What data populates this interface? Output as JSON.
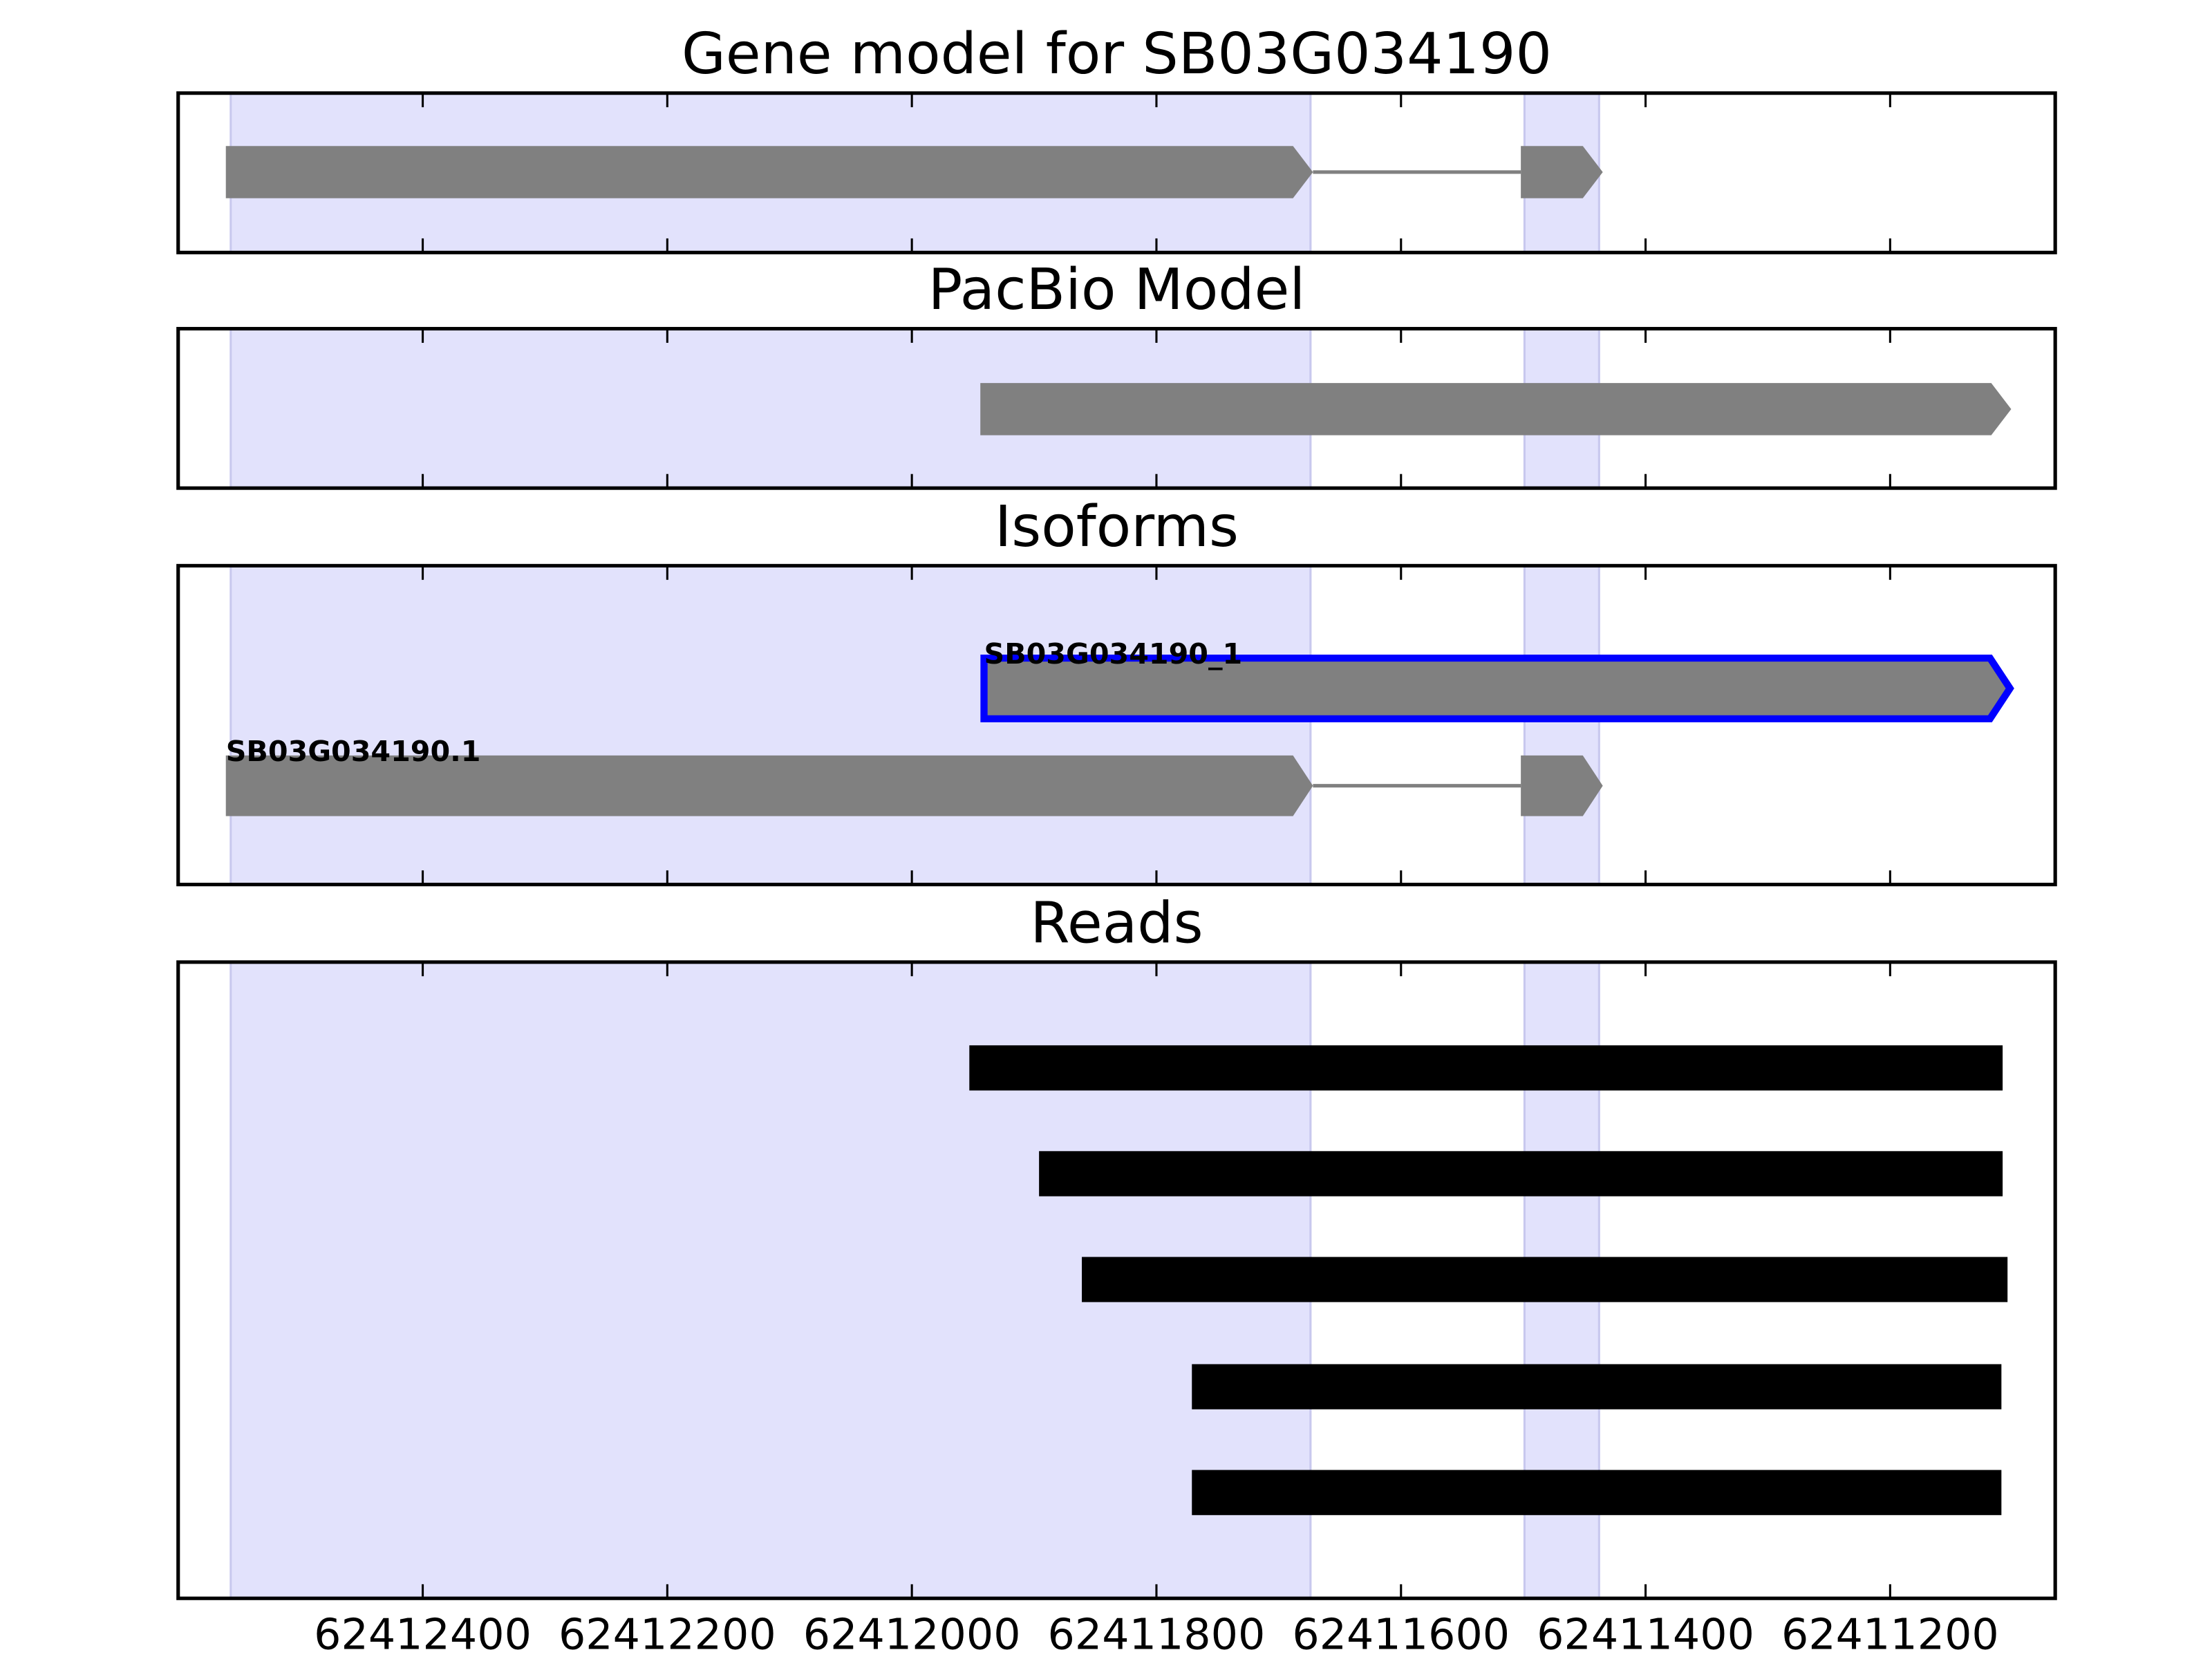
{
  "chart_data": [
    {
      "type": "gene",
      "title": "Gene model for SB03G034190",
      "xlim": [
        62412600,
        62411065
      ],
      "xticks": [
        62412400,
        62412200,
        62412000,
        62411800,
        62411600,
        62411400,
        62411200
      ],
      "highlights": [
        [
          62412557,
          62411674
        ],
        [
          62411499,
          62411438
        ]
      ],
      "highlight_color": "#e2e2fc",
      "features": [
        {
          "color": "#808080",
          "exons": [
            [
              62412561,
              62411672
            ],
            [
              62411502,
              62411435
            ]
          ]
        }
      ]
    },
    {
      "type": "gene",
      "title": "PacBio Model",
      "xlim": [
        62412600,
        62411065
      ],
      "xticks": [
        62412400,
        62412200,
        62412000,
        62411800,
        62411600,
        62411400,
        62411200
      ],
      "highlights": [
        [
          62412557,
          62411674
        ],
        [
          62411499,
          62411438
        ]
      ],
      "highlight_color": "#e2e2fc",
      "features": [
        {
          "color": "#808080",
          "exons": [
            [
              62411944,
              62411101
            ]
          ]
        }
      ]
    },
    {
      "type": "gene",
      "title": "Isoforms",
      "xlim": [
        62412600,
        62411065
      ],
      "xticks": [
        62412400,
        62412200,
        62412000,
        62411800,
        62411600,
        62411400,
        62411200
      ],
      "highlights": [
        [
          62412557,
          62411674
        ],
        [
          62411499,
          62411438
        ]
      ],
      "highlight_color": "#e2e2fc",
      "features": [
        {
          "name": "SB03G034190_1",
          "color": "#808080",
          "edgecolor": "#0000ff",
          "exons": [
            [
              62411941,
              62411102
            ]
          ]
        },
        {
          "name": "SB03G034190.1",
          "color": "#808080",
          "exons": [
            [
              62412561,
              62411672
            ],
            [
              62411502,
              62411435
            ]
          ]
        }
      ]
    },
    {
      "type": "reads",
      "title": "Reads",
      "xlim": [
        62412600,
        62411065
      ],
      "xticks": [
        62412400,
        62412200,
        62412000,
        62411800,
        62411600,
        62411400,
        62411200
      ],
      "highlights": [
        [
          62412557,
          62411674
        ],
        [
          62411499,
          62411438
        ]
      ],
      "highlight_color": "#e2e2fc",
      "features": [
        {
          "color": "#000000",
          "exons": [
            [
              62411953,
              62411108
            ]
          ]
        },
        {
          "color": "#000000",
          "exons": [
            [
              62411896,
              62411108
            ]
          ]
        },
        {
          "color": "#000000",
          "exons": [
            [
              62411861,
              62411104
            ]
          ]
        },
        {
          "color": "#000000",
          "exons": [
            [
              62411771,
              62411109
            ]
          ]
        },
        {
          "color": "#000000",
          "exons": [
            [
              62411771,
              62411109
            ]
          ]
        }
      ]
    }
  ]
}
